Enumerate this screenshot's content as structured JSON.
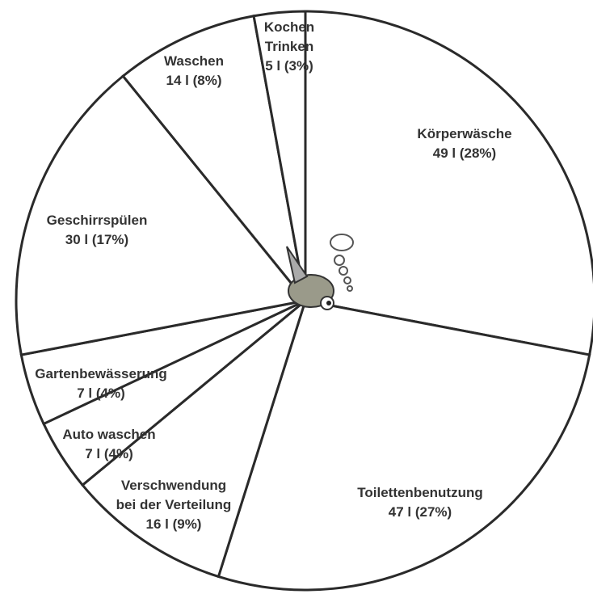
{
  "chart_data": {
    "type": "pie",
    "categories": [
      "Körperwäsche",
      "Toilettenbenutzung",
      "Verschwendung\nbei der Verteilung",
      "Auto waschen",
      "Gartenbewässerung",
      "Geschirrspülen",
      "Waschen",
      "Kochen\nTrinken"
    ],
    "values": [
      49,
      47,
      16,
      7,
      7,
      30,
      14,
      5
    ],
    "value_labels": [
      "49 l (28%)",
      "47 l (27%)",
      "16 l (9%)",
      "7 l (4%)",
      "7 l (4%)",
      "30 l (17%)",
      "14 l (8%)",
      "5 l (3%)"
    ],
    "color": "#ffffff"
  }
}
